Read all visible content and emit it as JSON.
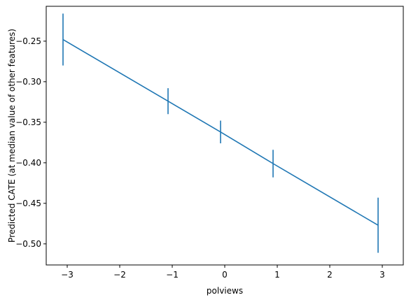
{
  "chart_data": {
    "type": "line",
    "title": "",
    "xlabel": "polviews",
    "ylabel": "Predicted CATE (at median value of other features)",
    "xlim": [
      -3.4,
      3.4
    ],
    "ylim": [
      -0.526,
      -0.207
    ],
    "x_ticks": [
      -3,
      -2,
      -1,
      0,
      1,
      2,
      3
    ],
    "x_tick_labels": [
      "−3",
      "−2",
      "−1",
      "0",
      "1",
      "2",
      "3"
    ],
    "y_ticks": [
      -0.25,
      -0.3,
      -0.35,
      -0.4,
      -0.45,
      -0.5
    ],
    "y_tick_labels": [
      "−0.25",
      "−0.30",
      "−0.35",
      "−0.40",
      "−0.45",
      "−0.50"
    ],
    "grid": false,
    "legend": "none",
    "series": [
      {
        "color": "#1f77b4",
        "points": [
          {
            "x": -3.08,
            "y": -0.248,
            "err_low": -0.28,
            "err_high": -0.216
          },
          {
            "x": -1.08,
            "y": -0.324,
            "err_low": -0.34,
            "err_high": -0.308
          },
          {
            "x": -0.08,
            "y": -0.362,
            "err_low": -0.376,
            "err_high": -0.348
          },
          {
            "x": 0.92,
            "y": -0.401,
            "err_low": -0.418,
            "err_high": -0.384
          },
          {
            "x": 2.92,
            "y": -0.477,
            "err_low": -0.511,
            "err_high": -0.443
          }
        ]
      }
    ]
  }
}
